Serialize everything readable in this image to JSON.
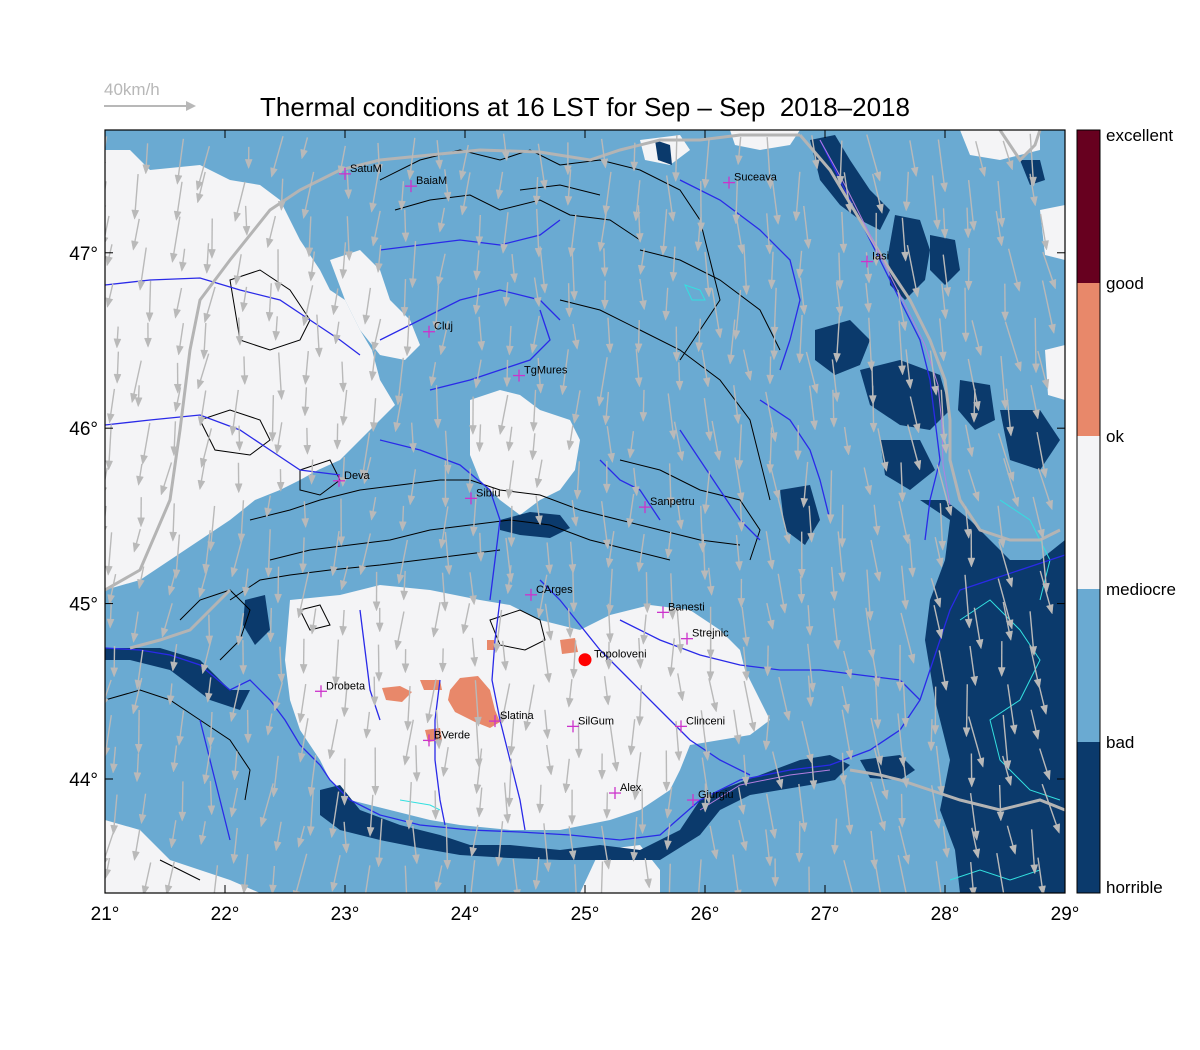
{
  "title": "Thermal conditions at 16 LST for Sep – Sep  2018–2018",
  "wind_reference": "40km/h",
  "map": {
    "lon_range": [
      21,
      29
    ],
    "lat_range": [
      43.35,
      47.7
    ],
    "lon_ticks": [
      "21°",
      "22°",
      "23°",
      "24°",
      "25°",
      "26°",
      "27°",
      "28°",
      "29°"
    ],
    "lat_ticks": [
      "44°",
      "45°",
      "46°",
      "47°"
    ],
    "highlight_city": "Topoloveni",
    "cities": [
      {
        "name": "SatuM",
        "lon": 23.0,
        "lat": 47.45
      },
      {
        "name": "BaiaM",
        "lon": 23.55,
        "lat": 47.38
      },
      {
        "name": "Suceava",
        "lon": 26.2,
        "lat": 47.4
      },
      {
        "name": "Iasi",
        "lon": 27.35,
        "lat": 46.95
      },
      {
        "name": "Cluj",
        "lon": 23.7,
        "lat": 46.55
      },
      {
        "name": "TgMures",
        "lon": 24.45,
        "lat": 46.3
      },
      {
        "name": "Deva",
        "lon": 22.95,
        "lat": 45.7
      },
      {
        "name": "Sibiu",
        "lon": 24.05,
        "lat": 45.6
      },
      {
        "name": "Sanpetru",
        "lon": 25.5,
        "lat": 45.55
      },
      {
        "name": "CArges",
        "lon": 24.55,
        "lat": 45.05
      },
      {
        "name": "Banesti",
        "lon": 25.65,
        "lat": 44.95
      },
      {
        "name": "Strejnic",
        "lon": 25.85,
        "lat": 44.8
      },
      {
        "name": "Topoloveni",
        "lon": 25.0,
        "lat": 44.68
      },
      {
        "name": "Drobeta",
        "lon": 22.8,
        "lat": 44.5
      },
      {
        "name": "Slatina",
        "lon": 24.25,
        "lat": 44.33
      },
      {
        "name": "SilGum",
        "lon": 24.9,
        "lat": 44.3
      },
      {
        "name": "Clinceni",
        "lon": 25.8,
        "lat": 44.3
      },
      {
        "name": "BVerde",
        "lon": 23.7,
        "lat": 44.22
      },
      {
        "name": "Alex",
        "lon": 25.25,
        "lat": 43.92
      },
      {
        "name": "Giurgiu",
        "lon": 25.9,
        "lat": 43.88
      }
    ]
  },
  "colorbar": {
    "labels": [
      "excellent",
      "good",
      "ok",
      "mediocre",
      "bad",
      "horrible"
    ],
    "colors": [
      "#67001f",
      "#e8886a",
      "#f4f4f6",
      "#6aaad2",
      "#0b3a6c"
    ]
  },
  "colors": {
    "bad": "#6aaad2",
    "horrible": "#0b3a6c",
    "mediocre": "#f4f4f6",
    "ok": "#e8886a",
    "river": "#2a2ae8",
    "border": "#b4b4b4",
    "wind_arrow": "#b9b9b9",
    "city_marker": "#cc33cc",
    "highlight": "#ff0000"
  }
}
